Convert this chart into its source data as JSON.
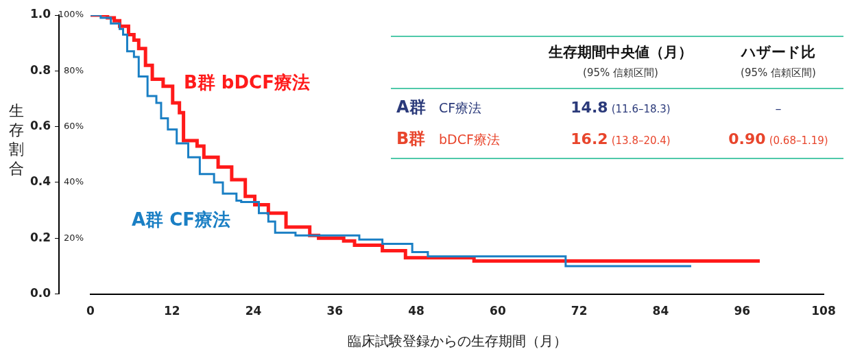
{
  "chart_data": {
    "type": "step",
    "xlabel": "臨床試験登録からの生存期間（月）",
    "ylabel": "生存割合",
    "xlim": [
      0,
      108
    ],
    "xticks": [
      0,
      12,
      24,
      36,
      48,
      60,
      72,
      84,
      96,
      108
    ],
    "ylim": [
      0,
      1
    ],
    "yticks": [
      {
        "value": 0,
        "label": "0.0"
      },
      {
        "value": 0.2,
        "label": "0.2"
      },
      {
        "value": 0.4,
        "label": "0.4"
      },
      {
        "value": 0.6,
        "label": "0.6"
      },
      {
        "value": 0.8,
        "label": "0.8"
      },
      {
        "value": 1,
        "label": "1.0"
      }
    ],
    "y2lim": [
      0,
      100
    ],
    "y2ticks": [
      {
        "value": 20,
        "label": "20%"
      },
      {
        "value": 40,
        "label": "40%"
      },
      {
        "value": 60,
        "label": "60%"
      },
      {
        "value": 80,
        "label": "80%"
      },
      {
        "value": 100,
        "label": "100%"
      }
    ],
    "grid": false,
    "legend": false,
    "marker": "none",
    "line_style": "solid",
    "series": [
      {
        "name": "A群 CF療法",
        "color": "#1a7fc4",
        "x": [
          0,
          1.5,
          3,
          4.3,
          4.8,
          5.4,
          6.4,
          7.1,
          8.4,
          9.7,
          10.4,
          11.4,
          12.7,
          14.4,
          16.1,
          18.2,
          19.5,
          21.5,
          22.2,
          24.8,
          26.2,
          27.2,
          30.2,
          39.6,
          43,
          47.4,
          49.7,
          70,
          88.5
        ],
        "values": [
          1,
          0.99,
          0.97,
          0.95,
          0.93,
          0.87,
          0.85,
          0.78,
          0.71,
          0.685,
          0.63,
          0.59,
          0.54,
          0.49,
          0.43,
          0.4,
          0.36,
          0.335,
          0.33,
          0.29,
          0.26,
          0.22,
          0.21,
          0.195,
          0.18,
          0.15,
          0.135,
          0.1,
          0.1
        ]
      },
      {
        "name": "B群 bDCF療法",
        "color": "#ff1a1a",
        "x": [
          0,
          2.5,
          3.5,
          4.3,
          5.6,
          6.4,
          7.1,
          8.1,
          9.1,
          10.7,
          12.1,
          13.1,
          13.7,
          15.7,
          16.7,
          18.8,
          20.8,
          22.8,
          24.2,
          26.2,
          28.8,
          32.3,
          33.6,
          37.3,
          38.9,
          43,
          46.4,
          56.5,
          98.6
        ],
        "values": [
          1,
          0.99,
          0.98,
          0.96,
          0.93,
          0.91,
          0.88,
          0.82,
          0.77,
          0.745,
          0.685,
          0.65,
          0.55,
          0.53,
          0.49,
          0.455,
          0.41,
          0.35,
          0.32,
          0.29,
          0.24,
          0.21,
          0.2,
          0.19,
          0.175,
          0.155,
          0.13,
          0.118,
          0.118
        ]
      }
    ],
    "annotations": [
      "生存期間中央値（月）",
      "(95% 信頼区間)",
      "ハザード比",
      "(95% 信頼区間)",
      "A群",
      "CF療法",
      "14.8",
      "(11.6–18.3)",
      "–",
      "B群",
      "bDCF療法",
      "16.2",
      "(13.8–20.4)",
      "0.90",
      "(0.68–1.19)"
    ]
  }
}
